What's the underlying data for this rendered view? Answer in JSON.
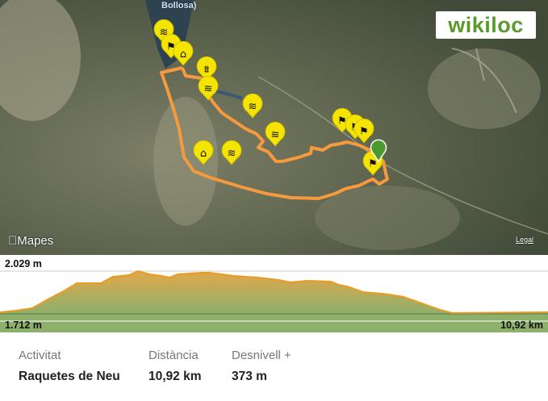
{
  "map": {
    "brand": "wikiloc",
    "map_label": "Bollosa)",
    "attribution": "Mapes",
    "legal_link": "Legal",
    "route_color": "#f79a3e",
    "waypoint_color": "#f5e400",
    "start_pin_color": "#4a9a2f",
    "waypoints": [
      {
        "icon": "lake-icon"
      },
      {
        "icon": "flag-icon"
      },
      {
        "icon": "shelter-icon"
      },
      {
        "icon": "bridge-icon"
      },
      {
        "icon": "lake-icon"
      },
      {
        "icon": "lake-icon"
      },
      {
        "icon": "lake-icon"
      },
      {
        "icon": "shelter-icon"
      },
      {
        "icon": "lake-icon"
      },
      {
        "icon": "flag-icon"
      },
      {
        "icon": "flag-icon"
      },
      {
        "icon": "flag-icon"
      },
      {
        "icon": "flag-icon"
      }
    ]
  },
  "elevation": {
    "max_label": "2.029 m",
    "min_label": "1.712 m",
    "distance_label": "10,92 km",
    "min_m": 1712,
    "max_m": 2029,
    "total_km": 10.92,
    "profile_km": [
      0,
      0.32,
      0.64,
      0.96,
      1.29,
      1.53,
      2.01,
      2.25,
      2.57,
      2.75,
      2.98,
      3.22,
      3.38,
      3.54,
      4.02,
      4.18,
      4.66,
      5.15,
      5.55,
      5.79,
      6.11,
      6.59,
      6.75,
      6.92,
      7.24,
      7.64,
      8.04,
      8.36,
      8.77,
      9.01,
      10.92
    ],
    "profile_m": [
      1724,
      1736,
      1754,
      1820,
      1885,
      1939,
      1939,
      1987,
      1999,
      2029,
      2005,
      1993,
      1981,
      2005,
      2017,
      2017,
      1993,
      1981,
      1963,
      1945,
      1957,
      1951,
      1927,
      1915,
      1873,
      1861,
      1838,
      1796,
      1742,
      1718,
      1724
    ]
  },
  "stats": [
    {
      "label": "Activitat",
      "value": "Raquetes de Neu"
    },
    {
      "label": "Distància",
      "value": "10,92 km"
    },
    {
      "label": "Desnivell +",
      "value": "373 m"
    }
  ]
}
